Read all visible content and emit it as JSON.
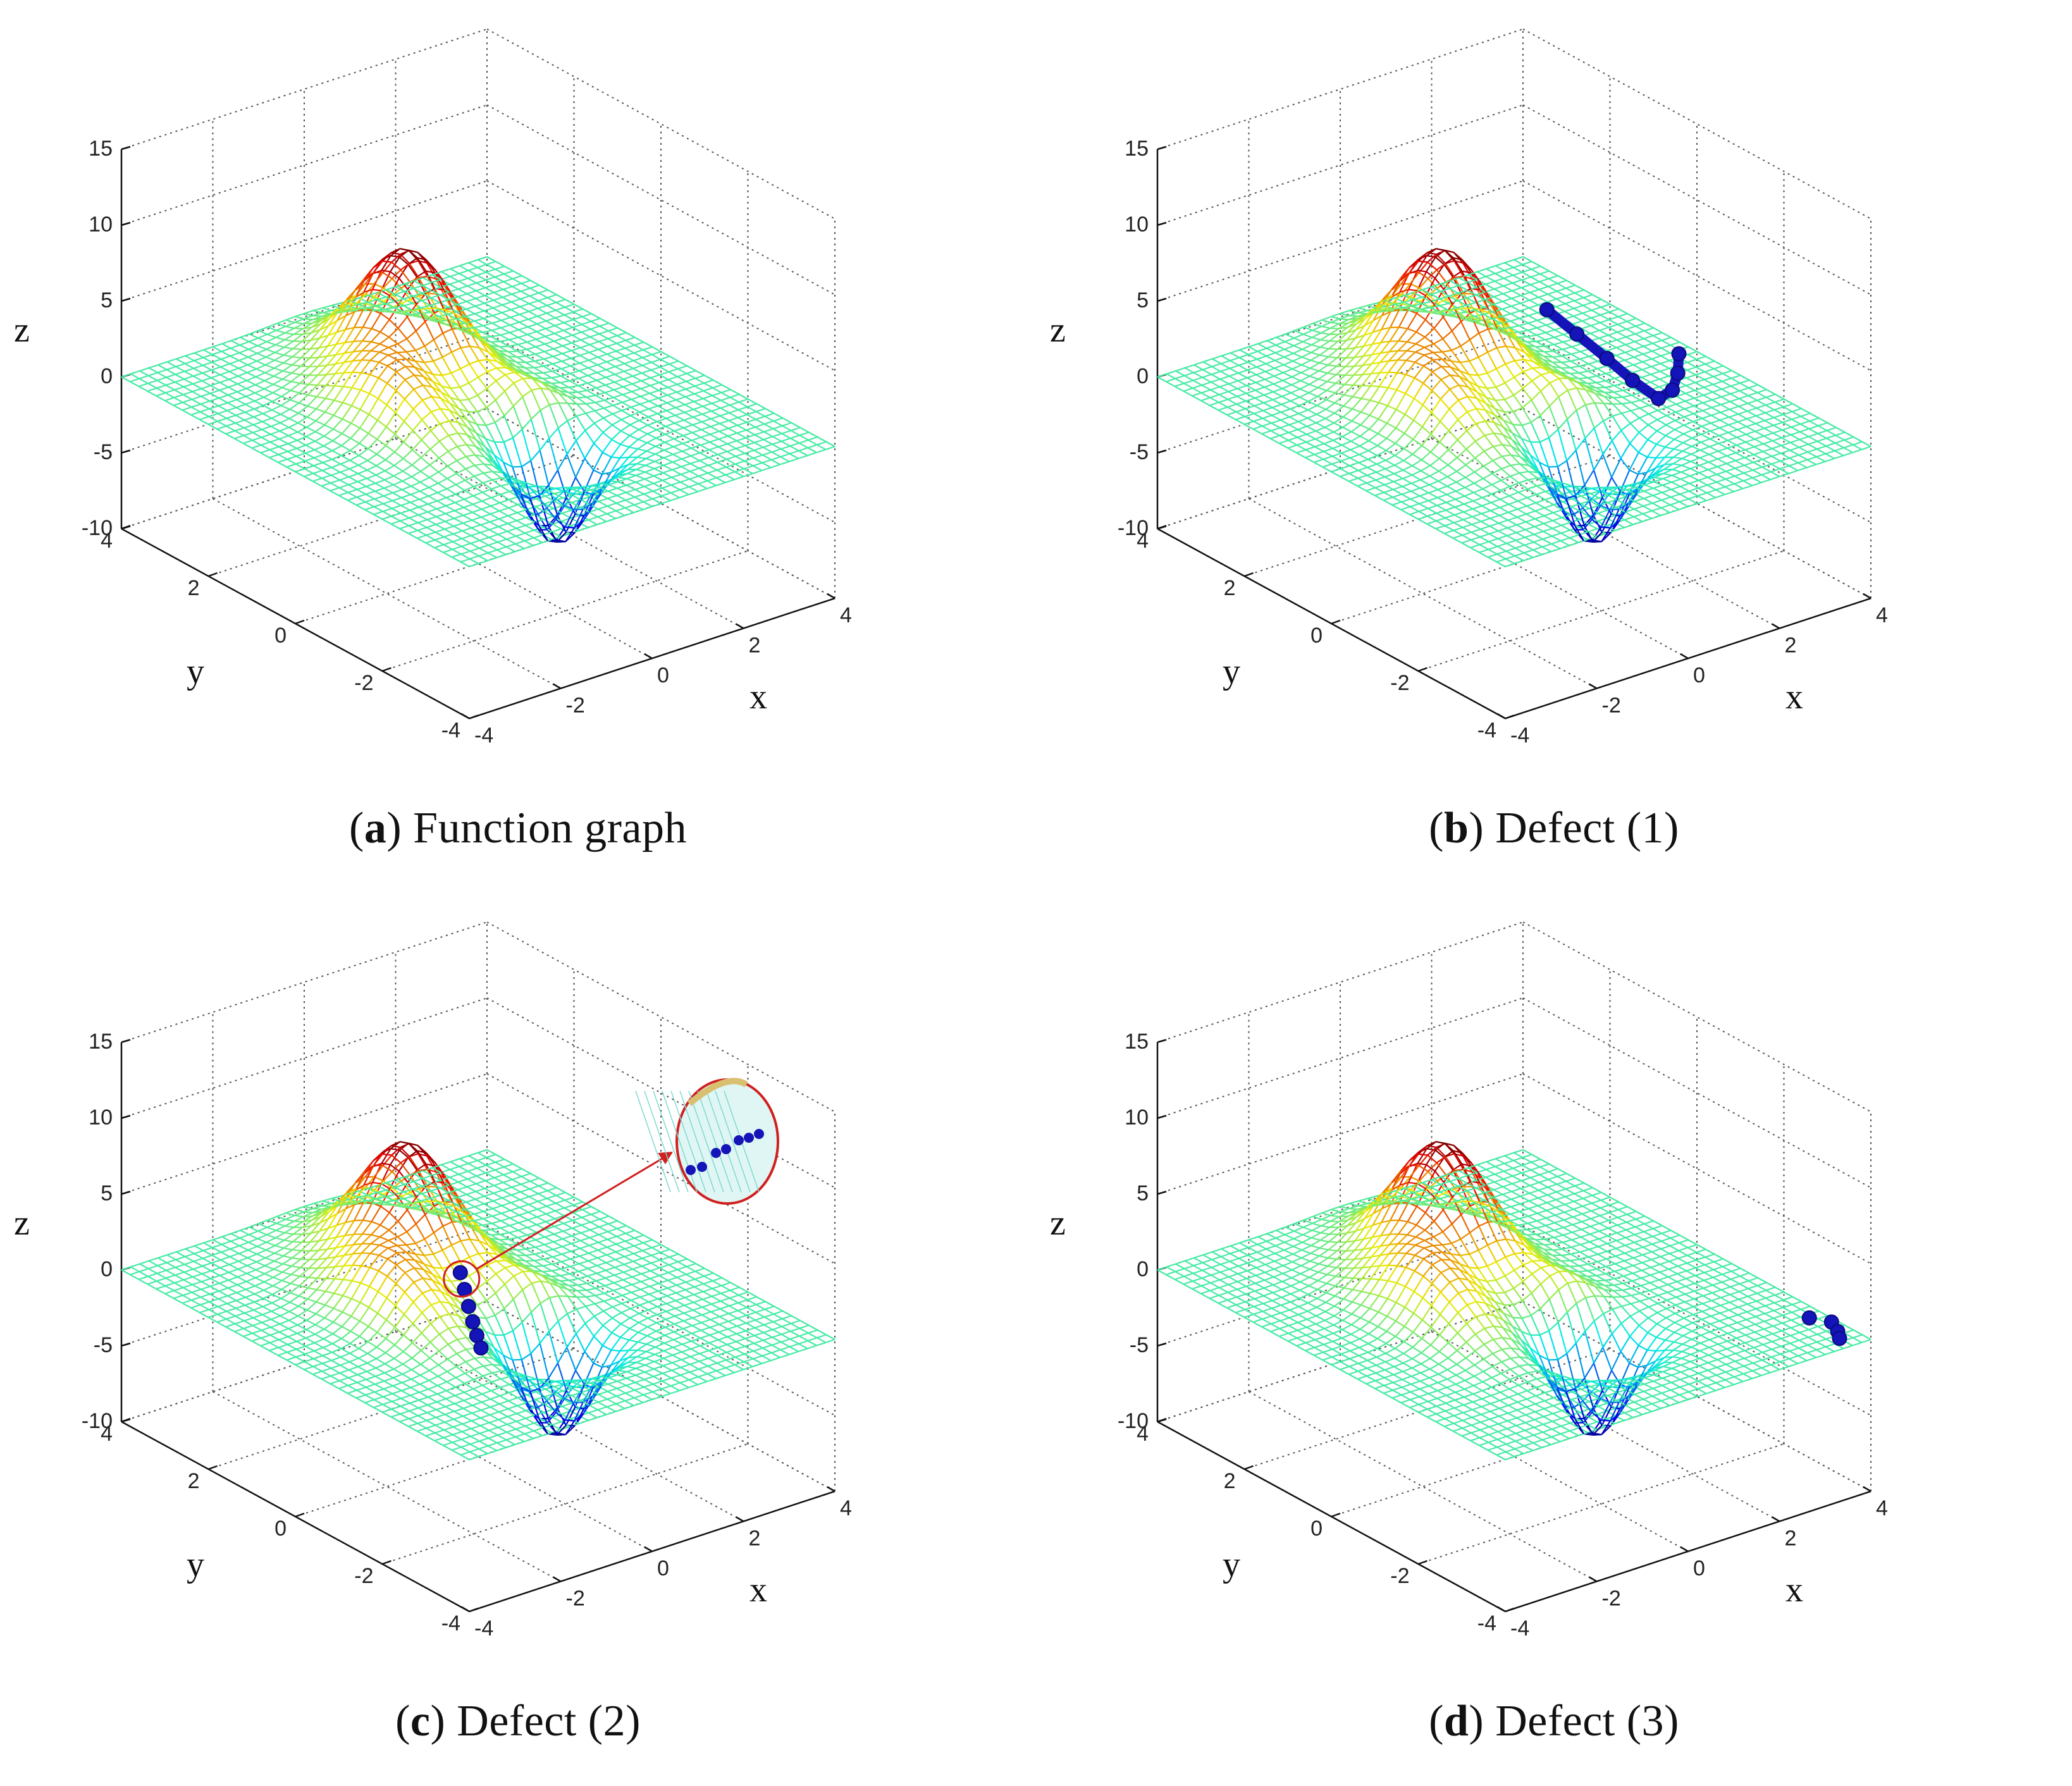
{
  "figure": {
    "panels": [
      {
        "id": "a",
        "letter": "a",
        "caption": "Function graph",
        "defect": null
      },
      {
        "id": "b",
        "letter": "b",
        "caption": "Defect (1)",
        "defect": "edge-path"
      },
      {
        "id": "c",
        "letter": "c",
        "caption": "Defect (2)",
        "defect": "ridge-cluster"
      },
      {
        "id": "d",
        "letter": "d",
        "caption": "Defect (3)",
        "defect": "corner-cluster"
      }
    ]
  },
  "chart_data": {
    "type": "surface3d",
    "title": "",
    "xlabel": "x",
    "ylabel": "y",
    "zlabel": "z",
    "xlim": [
      -4,
      4
    ],
    "ylim": [
      -4,
      4
    ],
    "zlim": [
      -10,
      15
    ],
    "x_ticks": [
      "-4",
      "-2",
      "0",
      "2",
      "4"
    ],
    "y_ticks": [
      "-4",
      "-2",
      "0",
      "2",
      "4"
    ],
    "z_ticks": [
      "-10",
      "-5",
      "0",
      "5",
      "10",
      "15"
    ],
    "grid": true,
    "colormap": "jet",
    "surface_features": [
      {
        "name": "peak",
        "x": 0.0,
        "y": 1.6,
        "z": 8.1
      },
      {
        "name": "shoulder",
        "x": -1.5,
        "y": 0.3,
        "z": 3.8
      },
      {
        "name": "trough",
        "x": 0.2,
        "y": -1.6,
        "z": -6.6
      }
    ],
    "defect_points": {
      "b": [
        {
          "x": 3.0,
          "y": 2.4,
          "z": 0
        },
        {
          "x": 2.8,
          "y": 1.5,
          "z": 0
        },
        {
          "x": 2.6,
          "y": 0.6,
          "z": 0
        },
        {
          "x": 2.4,
          "y": -0.2,
          "z": 0
        },
        {
          "x": 2.3,
          "y": -0.9,
          "z": 0
        },
        {
          "x": 2.7,
          "y": -0.8,
          "z": 0
        },
        {
          "x": 3.2,
          "y": -0.4,
          "z": 0
        },
        {
          "x": 3.7,
          "y": 0.1,
          "z": 0
        }
      ],
      "c": [
        {
          "x": -0.2,
          "y": 0.2,
          "z": 2.0
        },
        {
          "x": -0.3,
          "y": 0.0,
          "z": 1.3
        },
        {
          "x": -0.4,
          "y": -0.2,
          "z": 0.6
        },
        {
          "x": -0.5,
          "y": -0.4,
          "z": 0.0
        },
        {
          "x": -0.6,
          "y": -0.6,
          "z": -0.5
        },
        {
          "x": -0.7,
          "y": -0.8,
          "z": -0.9
        }
      ],
      "d": [
        {
          "x": 3.7,
          "y": -2.9,
          "z": 0
        },
        {
          "x": 3.9,
          "y": -3.2,
          "z": 0
        },
        {
          "x": 3.75,
          "y": -3.5,
          "z": 0
        },
        {
          "x": 3.6,
          "y": -3.7,
          "z": 0
        }
      ]
    },
    "annotations": [
      {
        "panel": "c",
        "type": "circle-and-arrow",
        "label": "zoomed defect points"
      }
    ]
  }
}
